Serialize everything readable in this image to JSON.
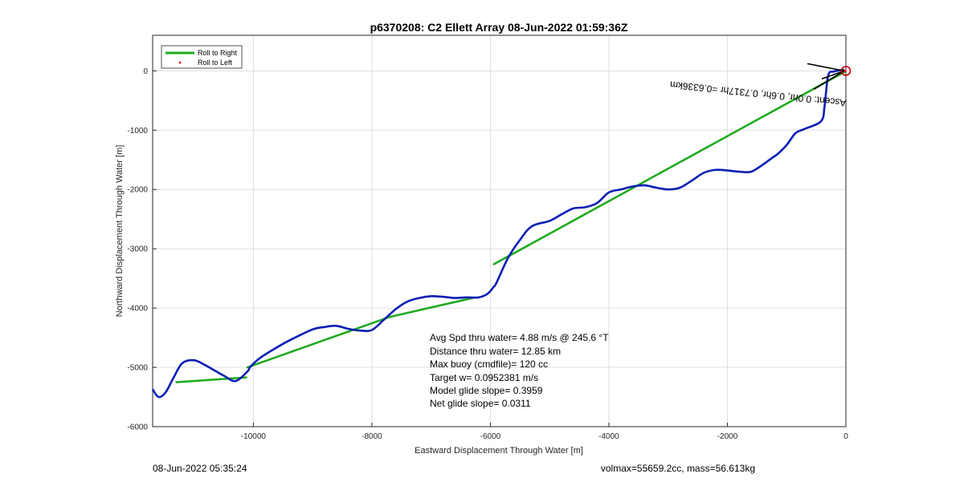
{
  "chart_data": {
    "type": "line",
    "title": "p6370208: C2 Ellett Array 08-Jun-2022 01:59:36Z",
    "xlabel": "Eastward Displacement Through Water [m]",
    "ylabel": "Northward Displacement Through Water [m]",
    "xlim": [
      -11700,
      0
    ],
    "ylim": [
      -6000,
      600
    ],
    "xticks": [
      -10000,
      -8000,
      -6000,
      -4000,
      -2000,
      0
    ],
    "xtick_labels": [
      "-10000",
      "-8000",
      "-6000",
      "-4000",
      "-2000",
      "0"
    ],
    "yticks": [
      0,
      -1000,
      -2000,
      -3000,
      -4000,
      -5000,
      -6000
    ],
    "ytick_labels": [
      "0",
      "-1000",
      "-2000",
      "-3000",
      "-4000",
      "-5000",
      "-6000"
    ],
    "grid": true,
    "legend_position": "top-left",
    "legend": [
      "Roll to Right",
      "Roll to Left"
    ],
    "series": [
      {
        "name": "Roll to Right",
        "color": "#1faa1f",
        "segments": [
          {
            "x": [
              -10,
              -5940
            ],
            "y": [
              -10,
              -3260
            ]
          },
          {
            "x": [
              -6300,
              -7700
            ],
            "y": [
              -3830,
              -4150
            ]
          },
          {
            "x": [
              -7700,
              -10100
            ],
            "y": [
              -4150,
              -5000
            ]
          },
          {
            "x": [
              -10120,
              -11300
            ],
            "y": [
              -5170,
              -5250
            ]
          }
        ]
      },
      {
        "name": "Roll to Left",
        "color": "#ff0000",
        "x": [
          -10
        ],
        "y": [
          0
        ]
      },
      {
        "name": "track",
        "color": "#0a1fb4",
        "x": [
          -30,
          -200,
          -300,
          -360,
          -420,
          -700,
          -850,
          -1000,
          -1150,
          -1250,
          -1400,
          -1600,
          -1800,
          -2000,
          -2200,
          -2400,
          -2600,
          -2800,
          -3000,
          -3200,
          -3400,
          -3600,
          -3800,
          -4000,
          -4200,
          -4400,
          -4600,
          -4800,
          -5000,
          -5300,
          -5500,
          -5700,
          -5900,
          -5950,
          -6050,
          -6200,
          -6400,
          -6600,
          -6800,
          -7000,
          -7200,
          -7400,
          -7600,
          -7800,
          -8000,
          -8200,
          -8400,
          -8600,
          -8800,
          -9000,
          -9400,
          -9700,
          -9900,
          -10050,
          -10100,
          -10300,
          -10500,
          -10800,
          -11000,
          -11200,
          -11350,
          -11480,
          -11600,
          -11700
        ],
        "y": [
          20,
          -10,
          -80,
          -600,
          -850,
          -980,
          -1050,
          -1250,
          -1400,
          -1470,
          -1580,
          -1700,
          -1700,
          -1680,
          -1670,
          -1720,
          -1850,
          -1970,
          -2000,
          -1970,
          -1930,
          -1950,
          -2000,
          -2050,
          -2230,
          -2300,
          -2320,
          -2420,
          -2530,
          -2620,
          -2850,
          -3150,
          -3580,
          -3650,
          -3760,
          -3820,
          -3820,
          -3830,
          -3810,
          -3800,
          -3830,
          -3890,
          -4020,
          -4200,
          -4370,
          -4380,
          -4350,
          -4300,
          -4320,
          -4360,
          -4550,
          -4720,
          -4850,
          -4990,
          -5070,
          -5230,
          -5140,
          -4970,
          -4880,
          -4930,
          -5180,
          -5420,
          -5500,
          -5370
        ]
      }
    ],
    "annotations": {
      "end_marker": {
        "x": 0,
        "y": 0,
        "color": "#cc0000"
      },
      "rotated_label": "Ascent: 0.0hr, 0.6hr, 0.7317hr =0.6336km",
      "stats": [
        "Avg Spd thru water=  4.88 m/s @ 245.6 °T",
        "Distance thru water= 12.85 km",
        "Max buoy (cmdfile)= 120 cc",
        "Target w= 0.0952381 m/s",
        "Model glide slope= 0.3959",
        "Net glide slope= 0.0311"
      ]
    }
  },
  "footer": {
    "left": "08-Jun-2022 05:35:24",
    "right": "volmax=55659.2cc, mass=56.613kg"
  }
}
